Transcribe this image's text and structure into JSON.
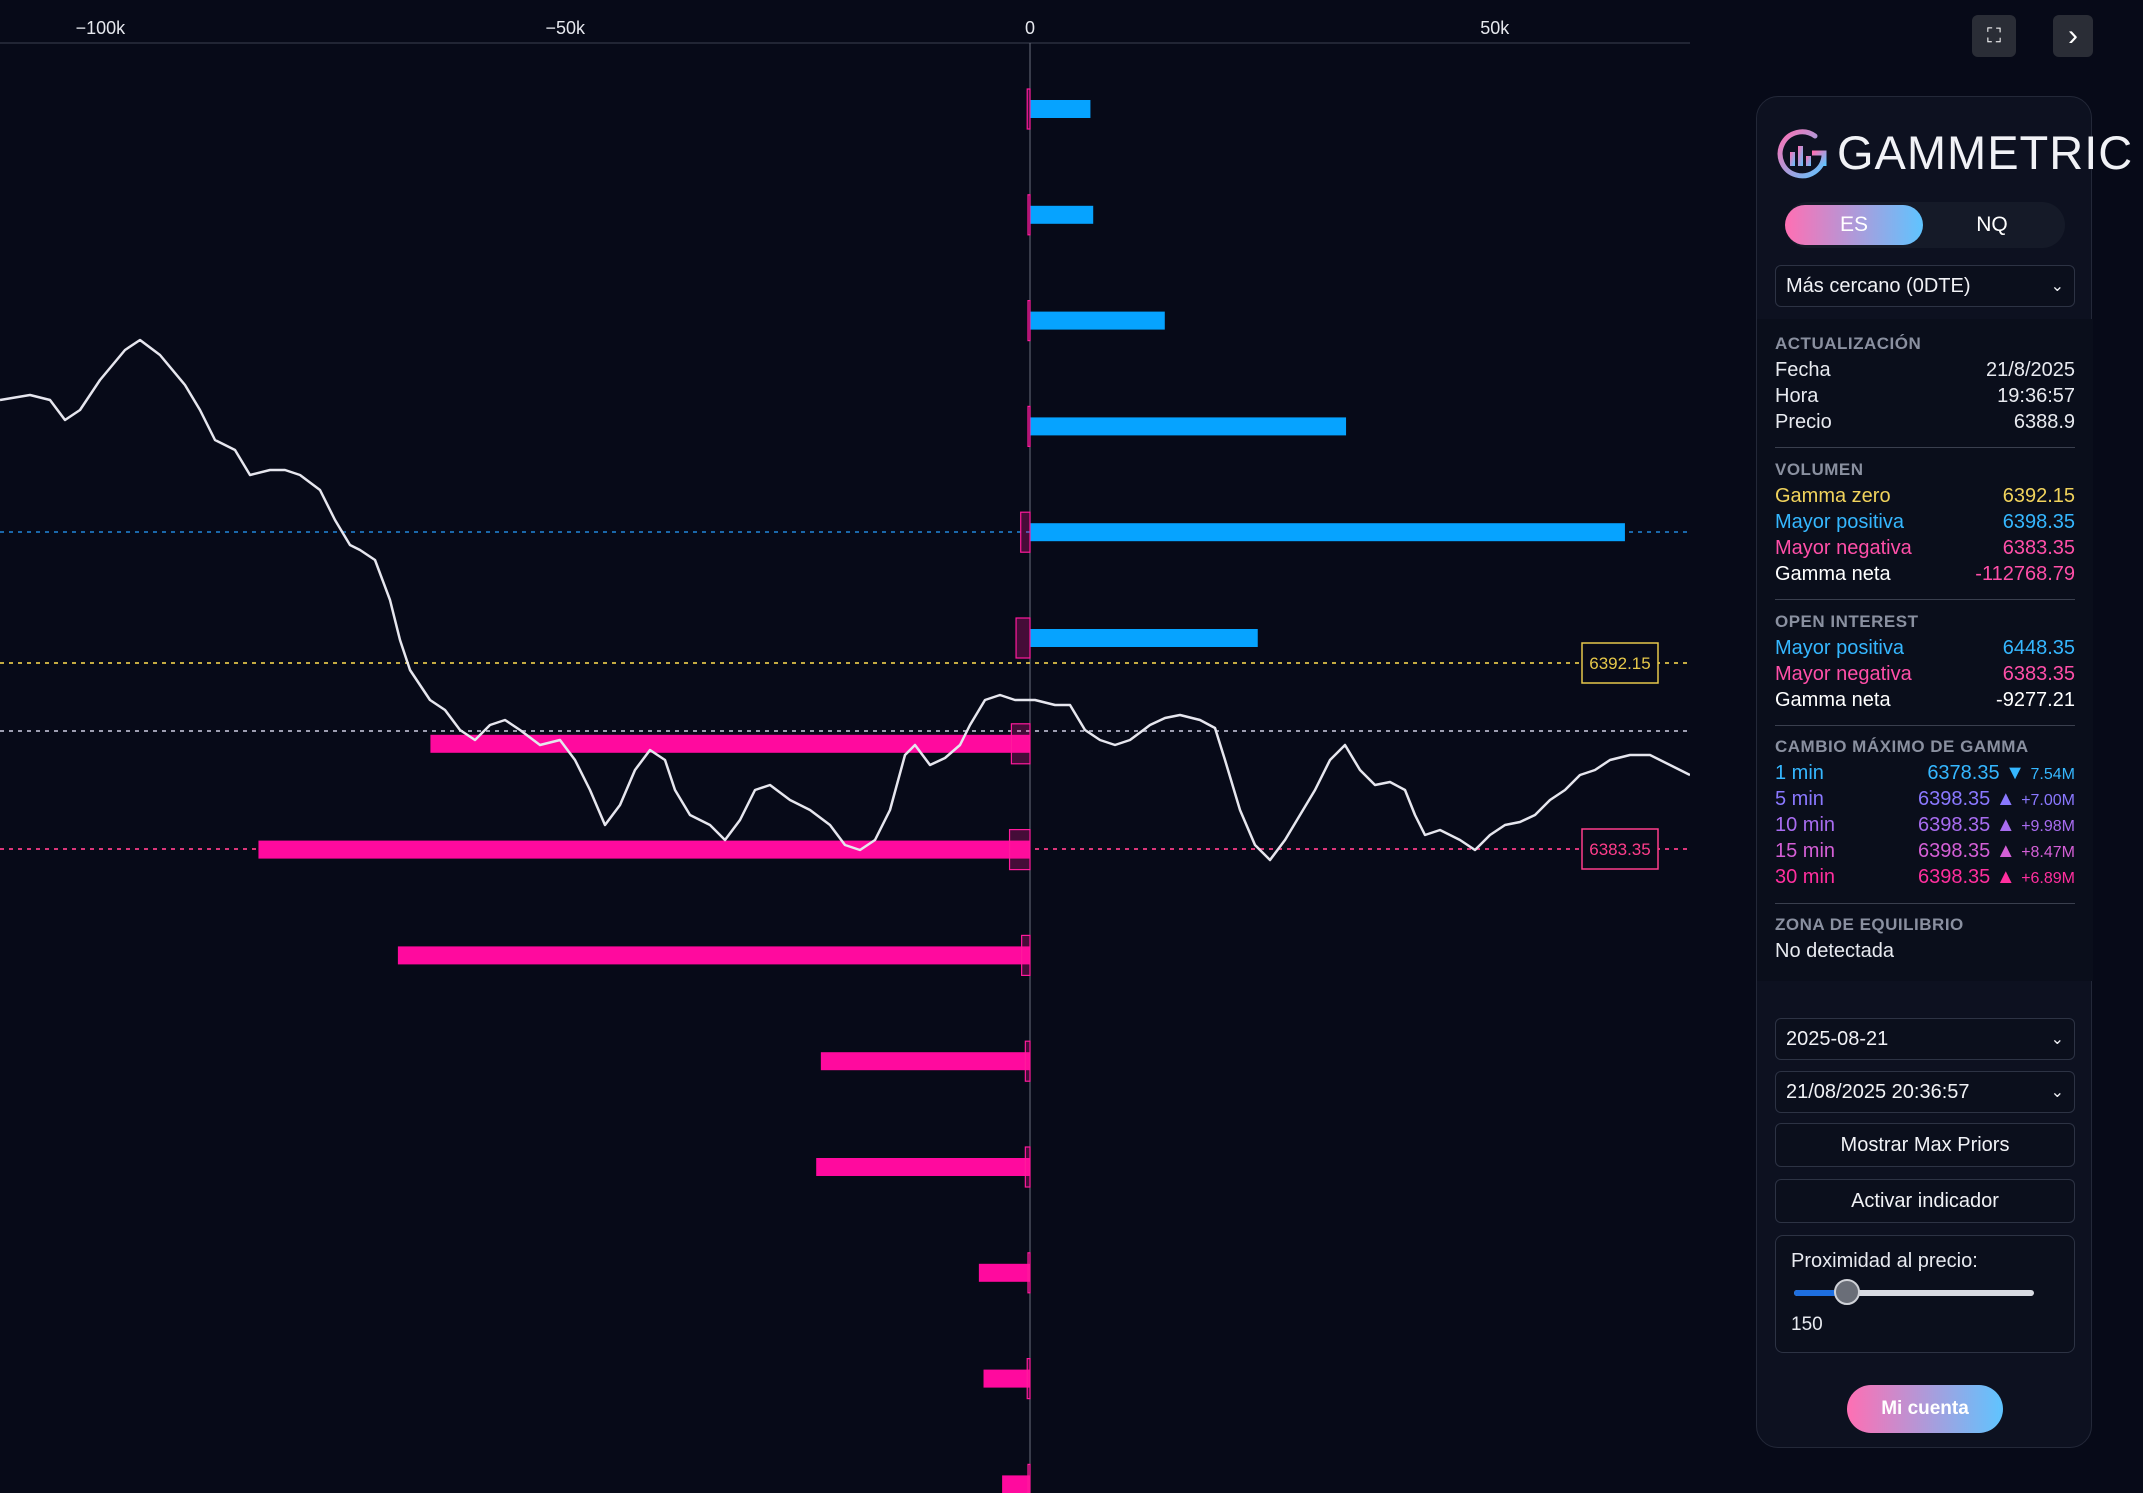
{
  "chart_data": {
    "type": "bar",
    "orientation": "horizontal",
    "xlim": [
      -110000,
      71000
    ],
    "x_ticks": [
      {
        "value": -100000,
        "label": "−100k"
      },
      {
        "value": -50000,
        "label": "−50k"
      },
      {
        "value": 0,
        "label": "0"
      },
      {
        "value": 50000,
        "label": "50k"
      }
    ],
    "series": [
      {
        "kind": "volume",
        "values": [
          6500,
          6800,
          14500,
          34000,
          64000,
          24500,
          -64500,
          -83000,
          -68000,
          -22500,
          -23000,
          -5500,
          -5000,
          -3000
        ]
      },
      {
        "kind": "open_interest",
        "values": [
          -300,
          -200,
          0,
          0,
          -1000,
          -1500,
          -2000,
          -2200,
          -900,
          -500,
          -500,
          0,
          -300,
          -200
        ]
      }
    ],
    "colors": {
      "positive": "#06a3ff",
      "negative": "#ff0a9e",
      "gamma_zero": "#f1d35c",
      "negative_level": "#e0507a"
    },
    "levels": [
      {
        "name": "Mayor positiva",
        "value": 6398.35,
        "color": "#1e78c4",
        "box": ""
      },
      {
        "name": "Gamma zero",
        "value": 6392.15,
        "color": "#e6c84a",
        "box": "6392.15"
      },
      {
        "name": "Precio",
        "value": 6388.9,
        "color": "#b8b8cc",
        "box": ""
      },
      {
        "name": "Mayor negativa",
        "value": 6383.35,
        "color": "#ff3d8b",
        "box": "6383.35"
      }
    ]
  },
  "header": {
    "fullscreen_icon": "expand-icon",
    "collapse_icon": "chevron-right-icon",
    "collapse_glyph": "›",
    "fullscreen_glyph": "⛶"
  },
  "panel": {
    "brand": "GAMMETRIC",
    "tabs": [
      {
        "label": "ES",
        "active": true
      },
      {
        "label": "NQ",
        "active": false
      }
    ],
    "expiry_select": "Más cercano (0DTE)",
    "update": {
      "title": "ACTUALIZACIÓN",
      "rows": [
        {
          "label": "Fecha",
          "value": "21/8/2025"
        },
        {
          "label": "Hora",
          "value": "19:36:57"
        },
        {
          "label": "Precio",
          "value": "6388.9"
        }
      ]
    },
    "volume": {
      "title": "VOLUMEN",
      "rows": [
        {
          "label": "Gamma zero",
          "value": "6392.15",
          "color": "#f1d35c"
        },
        {
          "label": "Mayor positiva",
          "value": "6398.35",
          "color": "#35b7ff"
        },
        {
          "label": "Mayor negativa",
          "value": "6383.35",
          "color": "#ff4fa8"
        },
        {
          "label": "Gamma neta",
          "value": "-112768.79",
          "label_color": "#ffffff",
          "color": "#ff4fa8"
        }
      ]
    },
    "open_interest": {
      "title": "OPEN INTEREST",
      "rows": [
        {
          "label": "Mayor positiva",
          "value": "6448.35",
          "color": "#35b7ff"
        },
        {
          "label": "Mayor negativa",
          "value": "6383.35",
          "color": "#ff4fa8"
        },
        {
          "label": "Gamma neta",
          "value": "-9277.21",
          "color": "#ffffff"
        }
      ]
    },
    "max_change": {
      "title": "CAMBIO MÁXIMO DE GAMMA",
      "rows": [
        {
          "label": "1 min",
          "value": "6378.35 ▼",
          "delta": "7.54M",
          "color": "#35b7ff"
        },
        {
          "label": "5 min",
          "value": "6398.35 ▲",
          "delta": "+7.00M",
          "color": "#8a78ff"
        },
        {
          "label": "10 min",
          "value": "6398.35 ▲",
          "delta": "+9.98M",
          "color": "#a86cf0"
        },
        {
          "label": "15 min",
          "value": "6398.35 ▲",
          "delta": "+8.47M",
          "color": "#d45fd6"
        },
        {
          "label": "30 min",
          "value": "6398.35 ▲",
          "delta": "+6.89M",
          "color": "#ff2f9e"
        }
      ]
    },
    "equilibrium": {
      "title": "ZONA DE EQUILIBRIO",
      "value": "No detectada"
    },
    "date_select": "2025-08-21",
    "datetime_select": "21/08/2025 20:36:57",
    "max_priors_button": "Mostrar Max Priors",
    "indicator_button": "Activar indicador",
    "proximity": {
      "label": "Proximidad al precio:",
      "value": "150",
      "fraction": 0.22
    },
    "account_button": "Mi cuenta"
  }
}
